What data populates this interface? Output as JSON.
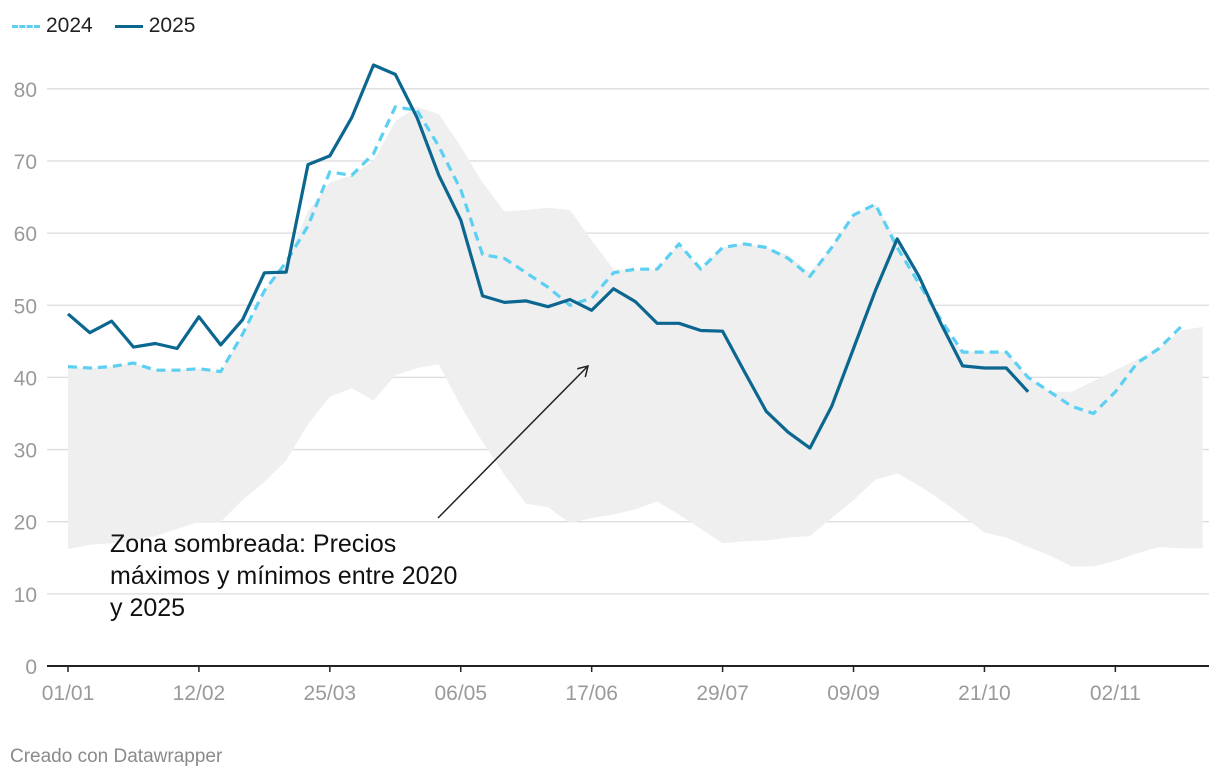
{
  "legend": {
    "items": [
      {
        "label": "2024",
        "color": "#5bd0f2",
        "style": "dashed"
      },
      {
        "label": "2025",
        "color": "#0b6690",
        "style": "solid"
      }
    ]
  },
  "annotation": {
    "text": "Zona sombreada: Precios máximos y mínimos entre 2020 y 2025"
  },
  "credit": "Creado con Datawrapper",
  "chart_data": {
    "type": "line",
    "x_unit": "week_index",
    "xlim": [
      0,
      52
    ],
    "ylim": [
      0,
      85
    ],
    "grid": true,
    "x_tick_labels": [
      {
        "x": 0,
        "label": "01/01"
      },
      {
        "x": 6,
        "label": "12/02"
      },
      {
        "x": 12,
        "label": "25/03"
      },
      {
        "x": 18,
        "label": "06/05"
      },
      {
        "x": 24,
        "label": "17/06"
      },
      {
        "x": 30,
        "label": "29/07"
      },
      {
        "x": 36,
        "label": "09/09"
      },
      {
        "x": 42,
        "label": "21/10"
      },
      {
        "x": 48,
        "label": "02/11"
      }
    ],
    "y_ticks": [
      0,
      10,
      20,
      30,
      40,
      50,
      60,
      70,
      80
    ],
    "band": {
      "name": "Precios máximos y mínimos entre 2020 y 2025",
      "color": "#efefef",
      "x": [
        0,
        1,
        2,
        3,
        4,
        5,
        6,
        7,
        8,
        9,
        10,
        11,
        12,
        13,
        14,
        15,
        16,
        17,
        18,
        19,
        20,
        21,
        22,
        23,
        24,
        25,
        26,
        27,
        28,
        29,
        30,
        31,
        32,
        33,
        34,
        35,
        36,
        37,
        38,
        39,
        40,
        41,
        42,
        43,
        44,
        45,
        46,
        47,
        48,
        49,
        50,
        51,
        52
      ],
      "upper": [
        41.5,
        41.3,
        41.5,
        42.0,
        41.0,
        41.0,
        41.2,
        40.8,
        46.0,
        52.0,
        56.0,
        63.0,
        67.0,
        68.0,
        70.0,
        75.5,
        77.5,
        76.5,
        72.0,
        67.0,
        63.0,
        63.2,
        63.5,
        63.2,
        59.0,
        55.0,
        54.8,
        55.0,
        58.5,
        55.0,
        58.0,
        58.5,
        58.0,
        57.0,
        54.5,
        58.0,
        62.5,
        64.0,
        59.0,
        53.0,
        47.5,
        43.5,
        43.5,
        43.5,
        40.0,
        38.0,
        38.0,
        39.5,
        41.0,
        42.5,
        44.0,
        46.5,
        47.0
      ],
      "lower": [
        16.2,
        16.8,
        17.0,
        17.5,
        18.0,
        19.0,
        20.0,
        20.0,
        23.0,
        25.5,
        28.5,
        33.5,
        37.3,
        38.5,
        36.8,
        40.3,
        41.3,
        41.8,
        36.0,
        31.0,
        26.5,
        22.5,
        22.0,
        19.8,
        20.5,
        21.0,
        21.7,
        22.8,
        21.0,
        19.0,
        17.0,
        17.3,
        17.4,
        17.8,
        18.0,
        20.5,
        23.0,
        25.8,
        26.7,
        25.0,
        23.0,
        20.8,
        18.5,
        17.8,
        16.5,
        15.3,
        13.8,
        13.8,
        14.6,
        15.6,
        16.5,
        16.3,
        16.3
      ]
    },
    "series": [
      {
        "name": "2024",
        "color": "#5bd0f2",
        "style": "dashed",
        "x": [
          0,
          1,
          2,
          3,
          4,
          5,
          6,
          7,
          8,
          9,
          10,
          11,
          12,
          13,
          14,
          15,
          16,
          17,
          18,
          19,
          20,
          21,
          22,
          23,
          24,
          25,
          26,
          27,
          28,
          29,
          30,
          31,
          32,
          33,
          34,
          35,
          36,
          37,
          38,
          39,
          40,
          41,
          42,
          43,
          44,
          45,
          46,
          47,
          48,
          49,
          50,
          51
        ],
        "values": [
          41.5,
          41.3,
          41.5,
          42.0,
          41.0,
          41.0,
          41.2,
          40.8,
          46.0,
          52.0,
          56.0,
          61.0,
          68.5,
          68.0,
          71.0,
          77.5,
          77.0,
          72.0,
          66.0,
          57.0,
          56.5,
          54.5,
          52.5,
          50.0,
          51.0,
          54.5,
          55.0,
          55.0,
          58.5,
          55.0,
          58.0,
          58.5,
          58.0,
          56.5,
          54.0,
          58.0,
          62.5,
          64.0,
          58.0,
          53.0,
          48.0,
          43.5,
          43.5,
          43.5,
          40.0,
          38.0,
          36.0,
          35.0,
          38.0,
          42.0,
          44.0,
          47.0
        ]
      },
      {
        "name": "2025",
        "color": "#0b6690",
        "style": "solid",
        "x": [
          0,
          1,
          2,
          3,
          4,
          5,
          6,
          7,
          8,
          9,
          10,
          11,
          12,
          13,
          14,
          15,
          16,
          17,
          18,
          19,
          20,
          21,
          22,
          23,
          24,
          25,
          26,
          27,
          28,
          29,
          30,
          31,
          32,
          33,
          34,
          35,
          36,
          37,
          38,
          39,
          40,
          41,
          42,
          43,
          44
        ],
        "values": [
          48.8,
          46.2,
          47.8,
          44.2,
          44.7,
          44.0,
          48.4,
          44.5,
          48.0,
          54.5,
          54.6,
          69.5,
          70.7,
          76.0,
          83.3,
          82.0,
          76.0,
          68.0,
          61.8,
          51.3,
          50.4,
          50.6,
          49.8,
          50.8,
          49.3,
          52.3,
          50.5,
          47.5,
          47.5,
          46.5,
          46.4,
          40.8,
          35.3,
          32.4,
          30.2,
          36.0,
          44.0,
          52.0,
          59.2,
          54.0,
          47.5,
          41.6,
          41.3,
          41.3,
          38.0
        ]
      }
    ]
  }
}
